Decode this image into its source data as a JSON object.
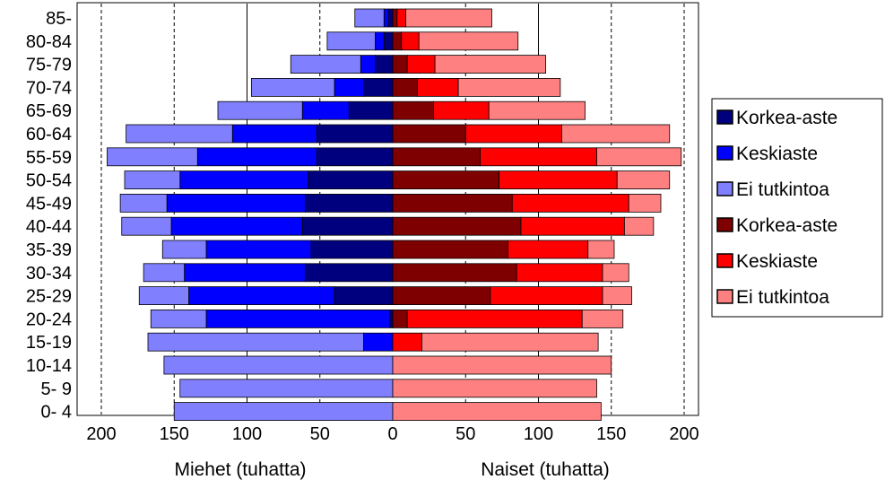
{
  "chart_data": {
    "type": "bar",
    "orientation": "horizontal-pyramid",
    "categories": [
      "0- 4",
      "5- 9",
      "10-14",
      "15-19",
      "20-24",
      "25-29",
      "30-34",
      "35-39",
      "40-44",
      "45-49",
      "50-54",
      "55-59",
      "60-64",
      "65-69",
      "70-74",
      "75-79",
      "80-84",
      "85-"
    ],
    "xlim": [
      -200,
      200
    ],
    "x_ticks": [
      "200",
      "150",
      "100",
      "50",
      "0",
      "50",
      "100",
      "150",
      "200"
    ],
    "x_tick_values": [
      -200,
      -150,
      -100,
      -50,
      0,
      50,
      100,
      150,
      200
    ],
    "grid": "vertical dashed at ±50, ±150, ±200; solid at ±100",
    "men_label": "Miehet (tuhatta)",
    "women_label": "Naiset (tuhatta)",
    "series": [
      {
        "name": "Korkea-aste",
        "group": "men",
        "color": "#00007F",
        "values": [
          0,
          0,
          0,
          0,
          2,
          40,
          60,
          56,
          62,
          60,
          58,
          52,
          52,
          30,
          20,
          12,
          6,
          3
        ]
      },
      {
        "name": "Keskiaste",
        "group": "men",
        "color": "#0000FF",
        "values": [
          0,
          0,
          0,
          20,
          126,
          100,
          83,
          72,
          90,
          95,
          88,
          82,
          58,
          32,
          20,
          10,
          6,
          3
        ]
      },
      {
        "name": "Ei tutkintoa",
        "group": "men",
        "color": "#8080FF",
        "values": [
          150,
          146,
          157,
          148,
          38,
          34,
          28,
          30,
          34,
          32,
          38,
          62,
          73,
          58,
          57,
          48,
          33,
          20
        ]
      },
      {
        "name": "Korkea-aste",
        "group": "women",
        "color": "#7F0000",
        "values": [
          0,
          0,
          0,
          0,
          10,
          67,
          85,
          79,
          88,
          82,
          73,
          60,
          50,
          28,
          17,
          10,
          6,
          3
        ]
      },
      {
        "name": "Keskiaste",
        "group": "women",
        "color": "#FF0000",
        "values": [
          0,
          0,
          0,
          20,
          120,
          77,
          59,
          55,
          71,
          80,
          81,
          80,
          66,
          38,
          28,
          19,
          12,
          6
        ]
      },
      {
        "name": "Ei tutkintoa",
        "group": "women",
        "color": "#FF8080",
        "values": [
          143,
          140,
          150,
          121,
          28,
          20,
          18,
          18,
          20,
          22,
          36,
          58,
          74,
          66,
          70,
          76,
          68,
          59
        ]
      }
    ],
    "legend": {
      "placement": "right",
      "items": [
        "Korkea-aste",
        "Keskiaste",
        "Ei tutkintoa",
        "Korkea-aste",
        "Keskiaste",
        "Ei tutkintoa"
      ]
    }
  }
}
